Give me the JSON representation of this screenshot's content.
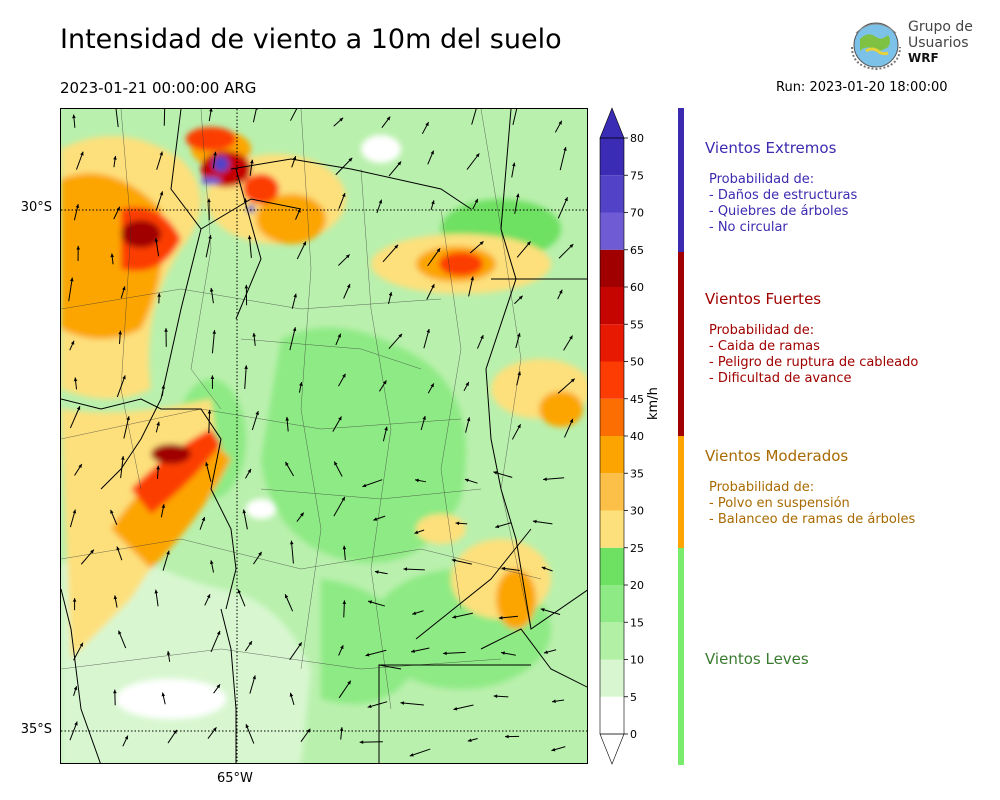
{
  "header": {
    "title": "Intensidad de viento a 10m del suelo",
    "valid_time": "2023-01-21 00:00:00 ARG",
    "run": "Run: 2023-01-20 18:00:00"
  },
  "logo": {
    "line1": "Grupo de",
    "line2": "Usuarios",
    "line3": "WRF"
  },
  "axes": {
    "lat_labels": [
      "30°S",
      "35°S"
    ],
    "lon_labels": [
      "65°W"
    ]
  },
  "colorbar": {
    "unit": "km/h",
    "ticks": [
      "0",
      "5",
      "10",
      "15",
      "20",
      "25",
      "30",
      "35",
      "40",
      "45",
      "50",
      "55",
      "60",
      "65",
      "70",
      "75",
      "80"
    ],
    "colors": [
      "#ffffff",
      "#d8f7d0",
      "#b2f0a6",
      "#8eea84",
      "#6ee062",
      "#fde07c",
      "#fcbf47",
      "#fca502",
      "#fd6e02",
      "#fc3c02",
      "#e81903",
      "#c40500",
      "#a00000",
      "#6f5bd4",
      "#5242c7",
      "#3a2cb4"
    ],
    "extend_max_color": "#3a2cb4"
  },
  "categories": [
    {
      "title": "Vientos Extremos",
      "color": "#3c2ab0",
      "desc": [
        "Probabilidad de:",
        "- Daños de estructuras",
        "- Quiebres de árboles",
        "- No circular"
      ]
    },
    {
      "title": "Vientos Fuertes",
      "color": "#a00000",
      "desc": [
        "Probabilidad de:",
        "- Caida de ramas",
        "- Peligro de ruptura de cableado",
        "- Dificultad de avance"
      ]
    },
    {
      "title": "Vientos Moderados",
      "color": "#a86a00",
      "bar_color": "#fca502",
      "desc": [
        "Probabilidad de:",
        "- Polvo en suspensión",
        "- Balanceo de ramas de árboles"
      ]
    },
    {
      "title": "Vientos Leves",
      "color": "#3a7a30",
      "bar_color": "#79ec6e",
      "desc": []
    }
  ]
}
